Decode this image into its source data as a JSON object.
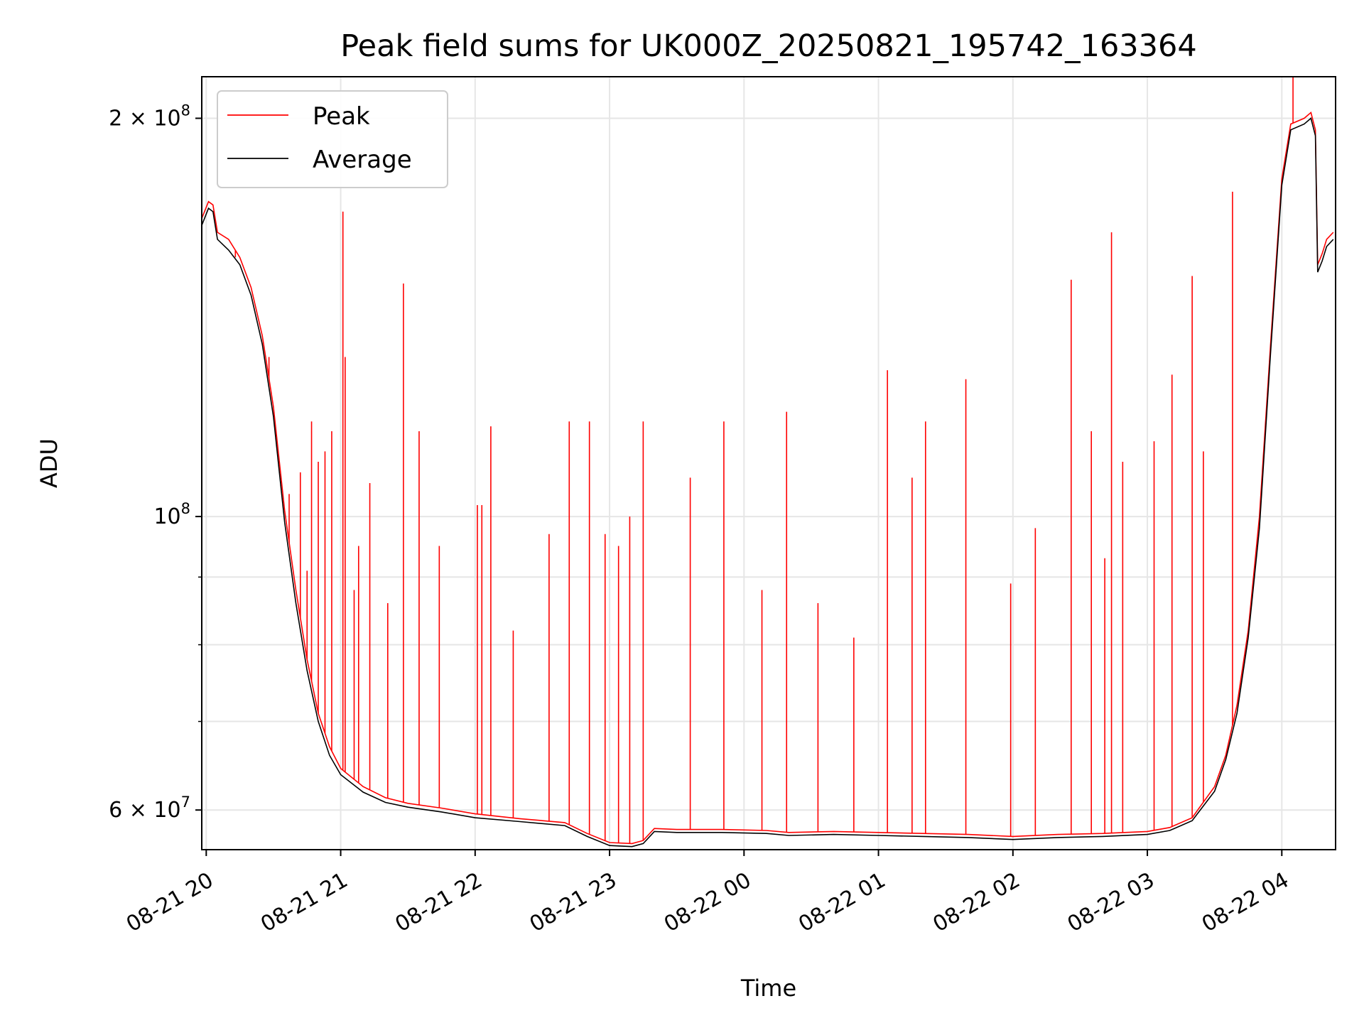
{
  "chart_data": {
    "type": "line",
    "title": "Peak field sums for UK000Z_20250821_195742_163364",
    "xlabel": "Time",
    "ylabel": "ADU",
    "y_scale": "log",
    "ylim": [
      56000000,
      215000000
    ],
    "x_range": [
      "2025-08-21 19:58",
      "2025-08-22 04:24"
    ],
    "grid": true,
    "legend_position": "upper left",
    "x_ticks": [
      {
        "label": "08-21 20",
        "t": "2025-08-21 20:00"
      },
      {
        "label": "08-21 21",
        "t": "2025-08-21 21:00"
      },
      {
        "label": "08-21 22",
        "t": "2025-08-21 22:00"
      },
      {
        "label": "08-21 23",
        "t": "2025-08-21 23:00"
      },
      {
        "label": "08-22 00",
        "t": "2025-08-22 00:00"
      },
      {
        "label": "08-22 01",
        "t": "2025-08-22 01:00"
      },
      {
        "label": "08-22 02",
        "t": "2025-08-22 02:00"
      },
      {
        "label": "08-22 03",
        "t": "2025-08-22 03:00"
      },
      {
        "label": "08-22 04",
        "t": "2025-08-22 04:00"
      }
    ],
    "y_major_ticks": [
      {
        "value": 60000000,
        "mantissa": "6",
        "base": "10",
        "exp": "7"
      },
      {
        "value": 100000000,
        "mantissa": "",
        "base": "10",
        "exp": "8"
      },
      {
        "value": 200000000,
        "mantissa": "2",
        "base": "10",
        "exp": "8"
      }
    ],
    "y_minor_ticks": [
      70000000,
      80000000,
      90000000
    ],
    "series": [
      {
        "name": "Peak",
        "color": "#ff0000",
        "baseline": [
          [
            "2025-08-21 19:58",
            168000000
          ],
          [
            "2025-08-21 20:01",
            173000000
          ],
          [
            "2025-08-21 20:03",
            172000000
          ],
          [
            "2025-08-21 20:05",
            164000000
          ],
          [
            "2025-08-21 20:10",
            162000000
          ],
          [
            "2025-08-21 20:15",
            157000000
          ],
          [
            "2025-08-21 20:20",
            149000000
          ],
          [
            "2025-08-21 20:25",
            137000000
          ],
          [
            "2025-08-21 20:30",
            121000000
          ],
          [
            "2025-08-21 20:35",
            101000000
          ],
          [
            "2025-08-21 20:40",
            88000000
          ],
          [
            "2025-08-21 20:45",
            78000000
          ],
          [
            "2025-08-21 20:50",
            71000000
          ],
          [
            "2025-08-21 20:55",
            67000000
          ],
          [
            "2025-08-21 21:00",
            64500000
          ],
          [
            "2025-08-21 21:10",
            62500000
          ],
          [
            "2025-08-21 21:20",
            61300000
          ],
          [
            "2025-08-21 21:30",
            60700000
          ],
          [
            "2025-08-21 21:45",
            60200000
          ],
          [
            "2025-08-21 22:00",
            59600000
          ],
          [
            "2025-08-21 22:20",
            59100000
          ],
          [
            "2025-08-21 22:40",
            58700000
          ],
          [
            "2025-08-21 22:50",
            57600000
          ],
          [
            "2025-08-21 23:00",
            56700000
          ],
          [
            "2025-08-21 23:10",
            56600000
          ],
          [
            "2025-08-21 23:15",
            56900000
          ],
          [
            "2025-08-21 23:20",
            58100000
          ],
          [
            "2025-08-21 23:30",
            58000000
          ],
          [
            "2025-08-21 23:50",
            58000000
          ],
          [
            "2025-08-22 00:10",
            57900000
          ],
          [
            "2025-08-22 00:20",
            57700000
          ],
          [
            "2025-08-22 00:40",
            57800000
          ],
          [
            "2025-08-22 01:00",
            57700000
          ],
          [
            "2025-08-22 01:20",
            57600000
          ],
          [
            "2025-08-22 01:40",
            57500000
          ],
          [
            "2025-08-22 02:00",
            57300000
          ],
          [
            "2025-08-22 02:20",
            57500000
          ],
          [
            "2025-08-22 02:40",
            57600000
          ],
          [
            "2025-08-22 03:00",
            57800000
          ],
          [
            "2025-08-22 03:10",
            58200000
          ],
          [
            "2025-08-22 03:20",
            59200000
          ],
          [
            "2025-08-22 03:30",
            62500000
          ],
          [
            "2025-08-22 03:35",
            66000000
          ],
          [
            "2025-08-22 03:40",
            72000000
          ],
          [
            "2025-08-22 03:45",
            82000000
          ],
          [
            "2025-08-22 03:50",
            100000000
          ],
          [
            "2025-08-22 03:55",
            135000000
          ],
          [
            "2025-08-22 04:00",
            180000000
          ],
          [
            "2025-08-22 04:04",
            198000000
          ],
          [
            "2025-08-22 04:10",
            200000000
          ],
          [
            "2025-08-22 04:13",
            202000000
          ],
          [
            "2025-08-22 04:15",
            196000000
          ],
          [
            "2025-08-22 04:16",
            155000000
          ],
          [
            "2025-08-22 04:18",
            158000000
          ],
          [
            "2025-08-22 04:20",
            162000000
          ],
          [
            "2025-08-22 04:23",
            164000000
          ]
        ],
        "spikes": [
          [
            "2025-08-21 20:13",
            157000000
          ],
          [
            "2025-08-21 20:28",
            132000000
          ],
          [
            "2025-08-21 20:37",
            104000000
          ],
          [
            "2025-08-21 20:42",
            108000000
          ],
          [
            "2025-08-21 20:45",
            91000000
          ],
          [
            "2025-08-21 20:47",
            118000000
          ],
          [
            "2025-08-21 20:50",
            110000000
          ],
          [
            "2025-08-21 20:53",
            112000000
          ],
          [
            "2025-08-21 20:56",
            116000000
          ],
          [
            "2025-08-21 21:01",
            170000000
          ],
          [
            "2025-08-21 21:02",
            132000000
          ],
          [
            "2025-08-21 21:06",
            88000000
          ],
          [
            "2025-08-21 21:08",
            95000000
          ],
          [
            "2025-08-21 21:13",
            106000000
          ],
          [
            "2025-08-21 21:21",
            86000000
          ],
          [
            "2025-08-21 21:28",
            150000000
          ],
          [
            "2025-08-21 21:35",
            116000000
          ],
          [
            "2025-08-21 21:44",
            95000000
          ],
          [
            "2025-08-21 22:01",
            102000000
          ],
          [
            "2025-08-21 22:03",
            102000000
          ],
          [
            "2025-08-21 22:07",
            117000000
          ],
          [
            "2025-08-21 22:17",
            82000000
          ],
          [
            "2025-08-21 22:33",
            97000000
          ],
          [
            "2025-08-21 22:42",
            118000000
          ],
          [
            "2025-08-21 22:51",
            118000000
          ],
          [
            "2025-08-21 22:58",
            97000000
          ],
          [
            "2025-08-21 23:04",
            95000000
          ],
          [
            "2025-08-21 23:09",
            100000000
          ],
          [
            "2025-08-21 23:15",
            118000000
          ],
          [
            "2025-08-21 23:36",
            107000000
          ],
          [
            "2025-08-21 23:51",
            118000000
          ],
          [
            "2025-08-22 00:08",
            88000000
          ],
          [
            "2025-08-22 00:19",
            120000000
          ],
          [
            "2025-08-22 00:33",
            86000000
          ],
          [
            "2025-08-22 00:49",
            81000000
          ],
          [
            "2025-08-22 01:04",
            129000000
          ],
          [
            "2025-08-22 01:15",
            107000000
          ],
          [
            "2025-08-22 01:21",
            118000000
          ],
          [
            "2025-08-22 01:39",
            127000000
          ],
          [
            "2025-08-22 01:59",
            89000000
          ],
          [
            "2025-08-22 02:10",
            98000000
          ],
          [
            "2025-08-22 02:26",
            151000000
          ],
          [
            "2025-08-22 02:35",
            116000000
          ],
          [
            "2025-08-22 02:41",
            93000000
          ],
          [
            "2025-08-22 02:44",
            164000000
          ],
          [
            "2025-08-22 02:49",
            110000000
          ],
          [
            "2025-08-22 03:03",
            114000000
          ],
          [
            "2025-08-22 03:11",
            128000000
          ],
          [
            "2025-08-22 03:20",
            152000000
          ],
          [
            "2025-08-22 03:25",
            112000000
          ],
          [
            "2025-08-22 03:38",
            176000000
          ],
          [
            "2025-08-22 04:05",
            215000000
          ]
        ]
      },
      {
        "name": "Average",
        "color": "#000000",
        "baseline": [
          [
            "2025-08-21 19:58",
            166000000
          ],
          [
            "2025-08-21 20:01",
            171000000
          ],
          [
            "2025-08-21 20:03",
            170000000
          ],
          [
            "2025-08-21 20:05",
            162000000
          ],
          [
            "2025-08-21 20:10",
            159000000
          ],
          [
            "2025-08-21 20:15",
            155000000
          ],
          [
            "2025-08-21 20:20",
            147000000
          ],
          [
            "2025-08-21 20:25",
            135000000
          ],
          [
            "2025-08-21 20:30",
            119000000
          ],
          [
            "2025-08-21 20:35",
            99000000
          ],
          [
            "2025-08-21 20:40",
            86000000
          ],
          [
            "2025-08-21 20:45",
            76500000
          ],
          [
            "2025-08-21 20:50",
            70000000
          ],
          [
            "2025-08-21 20:55",
            66000000
          ],
          [
            "2025-08-21 21:00",
            63800000
          ],
          [
            "2025-08-21 21:10",
            61900000
          ],
          [
            "2025-08-21 21:20",
            60800000
          ],
          [
            "2025-08-21 21:30",
            60300000
          ],
          [
            "2025-08-21 21:45",
            59800000
          ],
          [
            "2025-08-21 22:00",
            59200000
          ],
          [
            "2025-08-21 22:20",
            58800000
          ],
          [
            "2025-08-21 22:40",
            58400000
          ],
          [
            "2025-08-21 22:50",
            57300000
          ],
          [
            "2025-08-21 23:00",
            56400000
          ],
          [
            "2025-08-21 23:10",
            56300000
          ],
          [
            "2025-08-21 23:15",
            56600000
          ],
          [
            "2025-08-21 23:20",
            57800000
          ],
          [
            "2025-08-21 23:30",
            57700000
          ],
          [
            "2025-08-21 23:50",
            57700000
          ],
          [
            "2025-08-22 00:10",
            57600000
          ],
          [
            "2025-08-22 00:20",
            57400000
          ],
          [
            "2025-08-22 00:40",
            57500000
          ],
          [
            "2025-08-22 01:00",
            57400000
          ],
          [
            "2025-08-22 01:20",
            57300000
          ],
          [
            "2025-08-22 01:40",
            57200000
          ],
          [
            "2025-08-22 02:00",
            57000000
          ],
          [
            "2025-08-22 02:20",
            57200000
          ],
          [
            "2025-08-22 02:40",
            57300000
          ],
          [
            "2025-08-22 03:00",
            57500000
          ],
          [
            "2025-08-22 03:10",
            57900000
          ],
          [
            "2025-08-22 03:20",
            58900000
          ],
          [
            "2025-08-22 03:30",
            62000000
          ],
          [
            "2025-08-22 03:35",
            65500000
          ],
          [
            "2025-08-22 03:40",
            71000000
          ],
          [
            "2025-08-22 03:45",
            81000000
          ],
          [
            "2025-08-22 03:50",
            98000000
          ],
          [
            "2025-08-22 03:55",
            133000000
          ],
          [
            "2025-08-22 04:00",
            178000000
          ],
          [
            "2025-08-22 04:04",
            196000000
          ],
          [
            "2025-08-22 04:10",
            198000000
          ],
          [
            "2025-08-22 04:13",
            200000000
          ],
          [
            "2025-08-22 04:15",
            194000000
          ],
          [
            "2025-08-22 04:16",
            153000000
          ],
          [
            "2025-08-22 04:18",
            156000000
          ],
          [
            "2025-08-22 04:20",
            160000000
          ],
          [
            "2025-08-22 04:23",
            162000000
          ]
        ]
      }
    ]
  }
}
